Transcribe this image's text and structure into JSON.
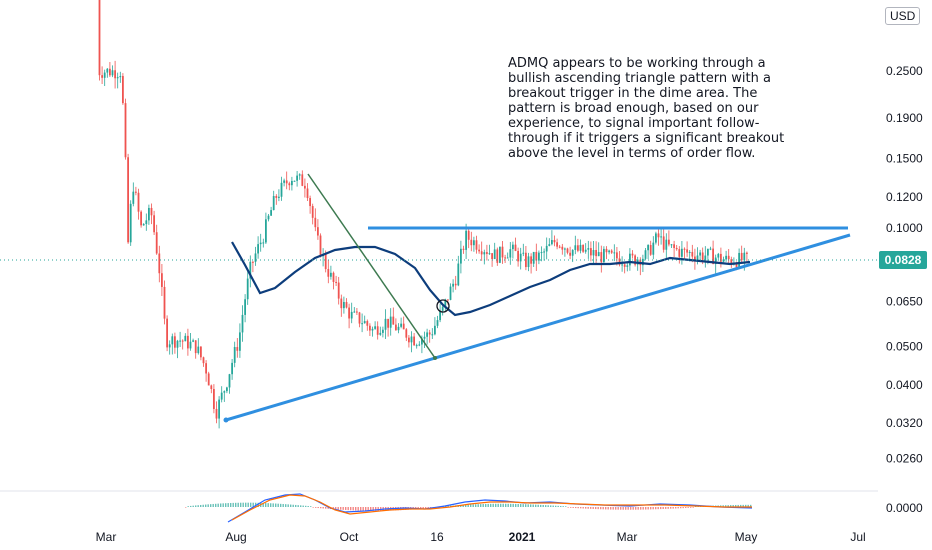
{
  "chart_data": {
    "type": "candlestick",
    "currency": "USD",
    "last_price": "0.0828",
    "y_scale": "log",
    "y_ticks": [
      "0.2500",
      "0.1900",
      "0.1500",
      "0.1200",
      "0.1000",
      "0.0828",
      "0.0650",
      "0.0500",
      "0.0400",
      "0.0320",
      "0.0260"
    ],
    "x_ticks": [
      "Mar",
      "Aug",
      "Oct",
      "16",
      "2021",
      "Mar",
      "May",
      "Jul"
    ],
    "annotation": "ADMQ appears to be working through a bullish ascending triangle pattern with a breakout trigger in the dime area. The pattern is broad enough, based on our experience, to signal important follow-through if it triggers a significant breakout above the level in terms of order flow.",
    "resistance_level": 0.1,
    "support_trendline": [
      [
        "Jul 2020",
        0.032
      ],
      [
        "Jun 2021",
        0.096
      ]
    ],
    "down_trendline": [
      [
        "Sep 2020",
        0.138
      ],
      [
        "Dec 2020",
        0.047
      ]
    ],
    "moving_average_color": "#0d3d7c",
    "indicator_panel": {
      "name": "MACD",
      "zero_tick": "0.0000"
    },
    "colors": {
      "up": "#26a69a",
      "down": "#ef5350",
      "trendline": "#2f8fe0",
      "downtrend": "#3d7a50",
      "last_price": "#26a69a"
    }
  }
}
